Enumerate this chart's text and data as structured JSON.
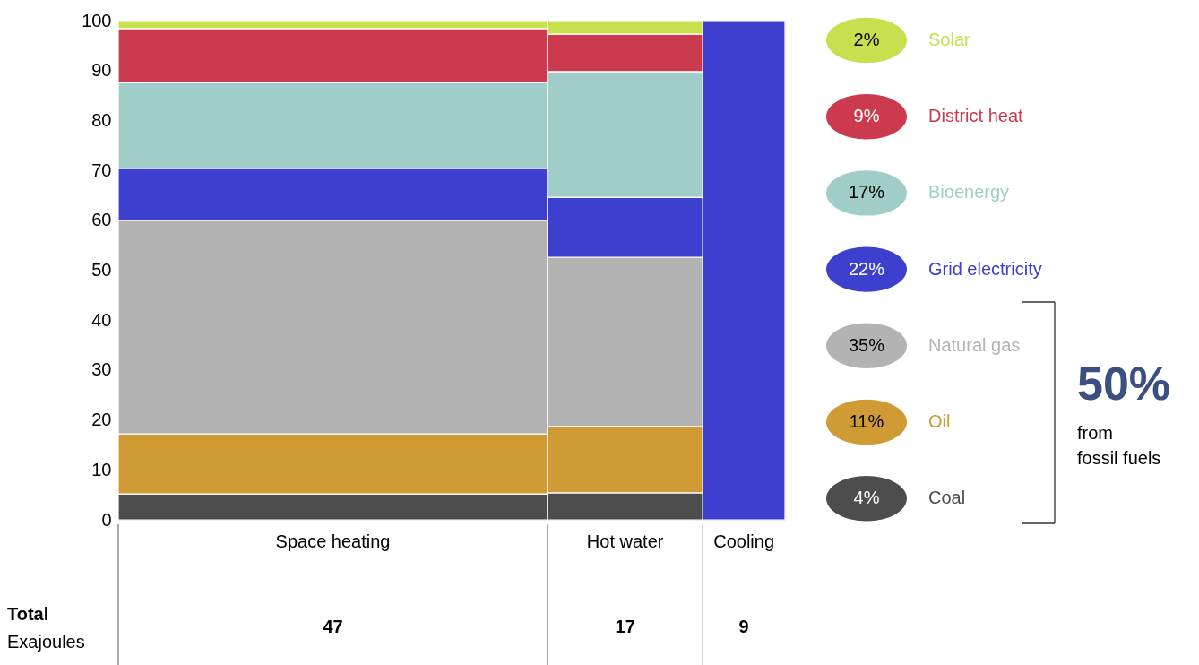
{
  "chart_data": {
    "type": "bar",
    "stacked": true,
    "legend": "right",
    "categories": [
      "Space heating",
      "Hot water",
      "Cooling"
    ],
    "ylim": [
      0,
      100
    ],
    "yticks": [
      0,
      10,
      20,
      30,
      40,
      50,
      60,
      70,
      80,
      90,
      100
    ],
    "series": [
      {
        "name": "Coal",
        "color": "#4d4d4d",
        "values": [
          5.2,
          5.4,
          null
        ]
      },
      {
        "name": "Oil",
        "color": "#d09a35",
        "values": [
          12.0,
          13.3,
          null
        ]
      },
      {
        "name": "Natural gas",
        "color": "#b3b3b3",
        "values": [
          42.8,
          33.9,
          null
        ]
      },
      {
        "name": "Grid electricity",
        "color": "#3d3fce",
        "values": [
          10.4,
          12.0,
          100
        ]
      },
      {
        "name": "Bioenergy",
        "color": "#a0cdc8",
        "values": [
          17.2,
          25.2,
          null
        ]
      },
      {
        "name": "District heat",
        "color": "#cc3a4f",
        "values": [
          10.8,
          7.5,
          null
        ]
      },
      {
        "name": "Solar",
        "color": "#c9e04e",
        "values": [
          1.6,
          2.7,
          null
        ]
      }
    ],
    "annotations": [
      "4%",
      "11%",
      "35%",
      "22%",
      "17%",
      "9%",
      "2%",
      "50%",
      "from",
      "fossil fuels",
      "Total",
      "Exajoules",
      "47",
      "17",
      "9"
    ]
  }
}
